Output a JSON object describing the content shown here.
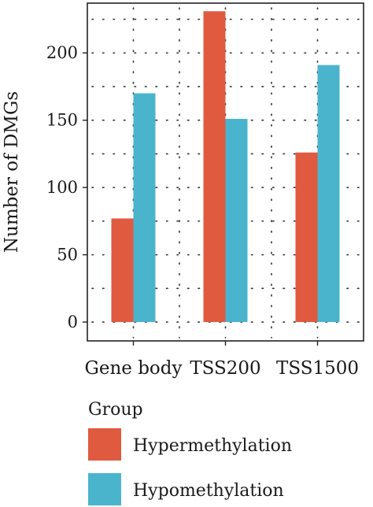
{
  "chart_data": {
    "type": "bar",
    "categories": [
      "Gene body",
      "TSS200",
      "TSS1500"
    ],
    "series": [
      {
        "name": "Hypermethylation",
        "values": [
          77,
          231,
          126
        ],
        "color": "#e05a3f"
      },
      {
        "name": "Hypomethylation",
        "values": [
          170,
          151,
          191
        ],
        "color": "#4ab4cc"
      }
    ],
    "xlabel": "",
    "ylabel": "Number of DMGs",
    "ylim": [
      -14,
      237
    ],
    "yticks": [
      0,
      50,
      100,
      150,
      200
    ],
    "grid": true,
    "legend": {
      "title": "Group",
      "placement": "bottom"
    }
  }
}
